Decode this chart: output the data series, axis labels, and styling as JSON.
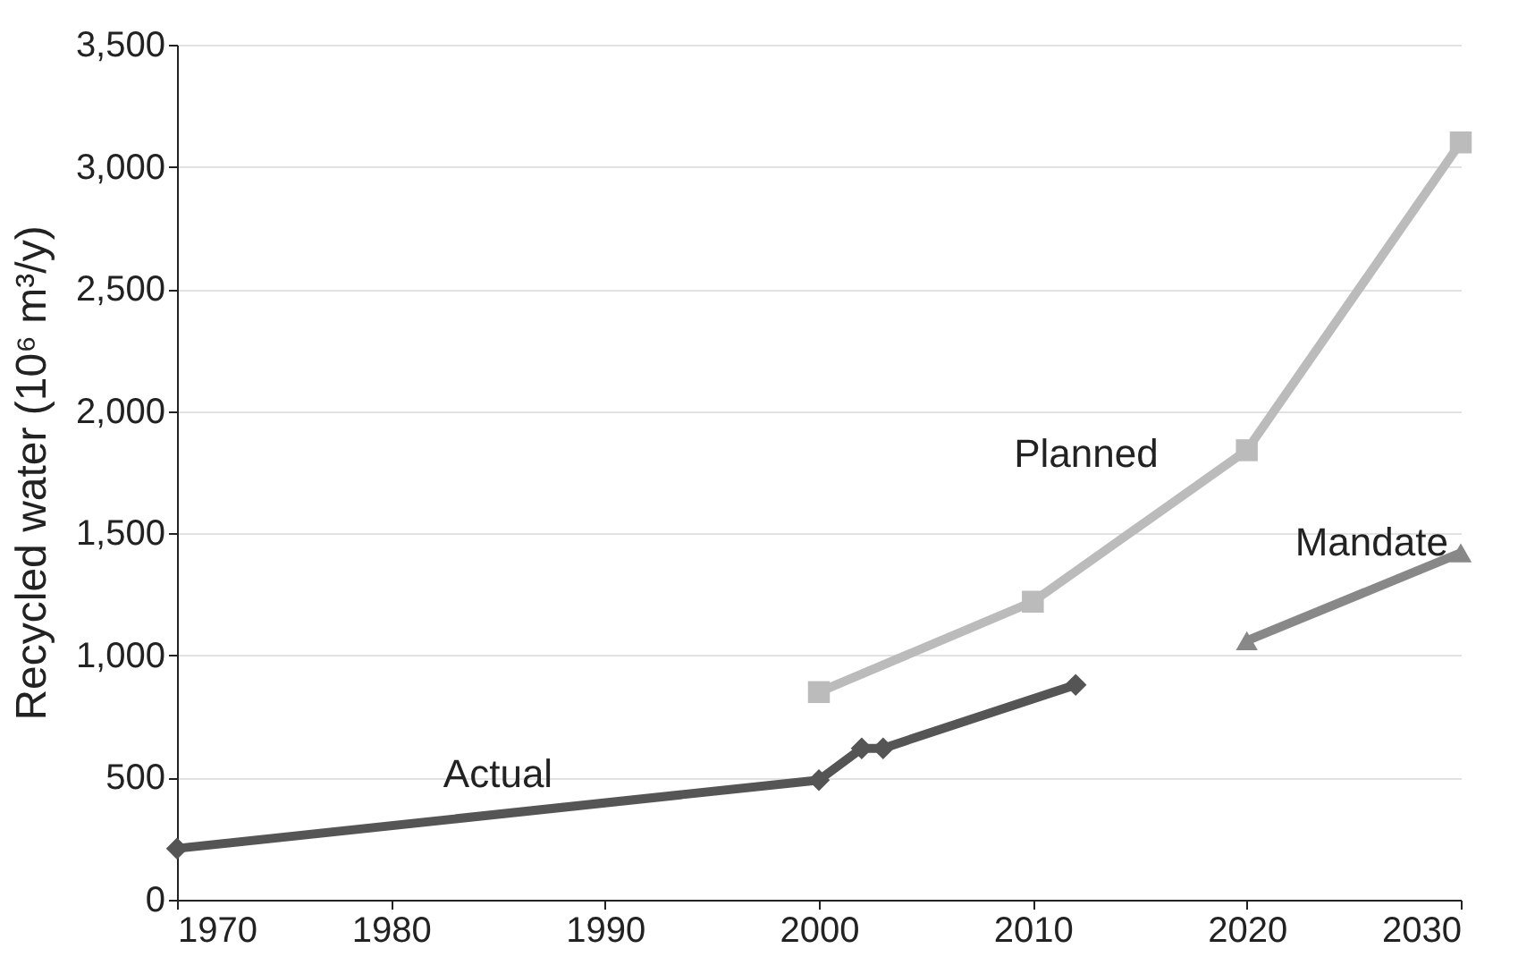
{
  "chart_data": {
    "type": "line",
    "ylabel": "Recycled water (10⁶ m³/y)",
    "xlim": [
      1970,
      2030
    ],
    "xticks": [
      1970,
      1980,
      1990,
      2000,
      2010,
      2020,
      2030
    ],
    "ylim": [
      0,
      3500
    ],
    "yticks": [
      0,
      {
        "value": 500,
        "label": "500"
      },
      {
        "value": 1000,
        "label": "1,000"
      },
      {
        "value": 1500,
        "label": "1,500"
      },
      {
        "value": 2000,
        "label": "2,000"
      },
      {
        "value": 2500,
        "label": "2,500"
      },
      {
        "value": 3000,
        "label": "3,000"
      },
      {
        "value": 3500,
        "label": "3,500"
      }
    ],
    "grid": "y",
    "line_style": "solid",
    "series": [
      {
        "name": "Actual",
        "color": "#555555",
        "marker": "diamond",
        "x": [
          1970,
          2000,
          2002,
          2003,
          2012
        ],
        "values": [
          210,
          490,
          620,
          620,
          880
        ]
      },
      {
        "name": "Planned",
        "color": "#bbbbbb",
        "marker": "square",
        "x": [
          2000,
          2010,
          2020,
          2030
        ],
        "values": [
          850,
          1220,
          1840,
          3100
        ]
      },
      {
        "name": "Mandate",
        "color": "#888888",
        "marker": "triangle",
        "x": [
          2020,
          2030
        ],
        "values": [
          1060,
          1420
        ]
      }
    ]
  }
}
